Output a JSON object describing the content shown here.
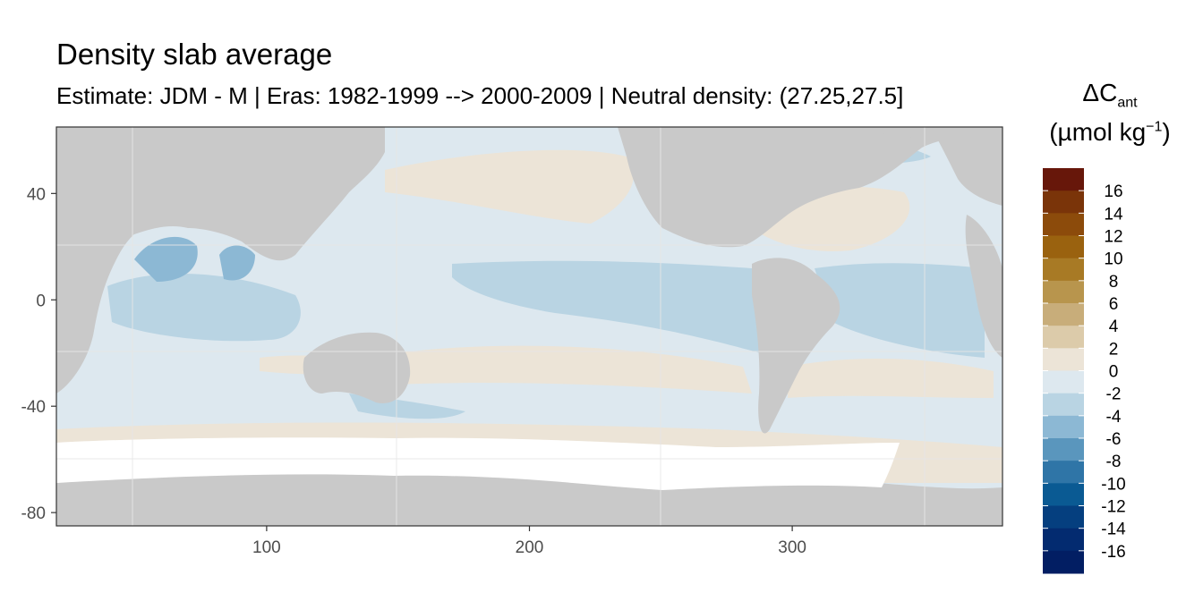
{
  "chart_data": {
    "type": "heatmap",
    "title": "Density slab average",
    "subtitle": "Estimate: JDM - M | Eras: 1982-1999 --> 2000-2009 | Neutral density: (27.25,27.5]",
    "x_ticks": [
      100,
      200,
      300
    ],
    "y_ticks": [
      40,
      0,
      -40,
      -80
    ],
    "xlim": [
      20,
      380
    ],
    "ylim": [
      -85,
      65
    ],
    "legend": {
      "title_symbol": "ΔC",
      "title_subscript": "ant",
      "unit_main": "(µmol kg",
      "unit_superscript": "−1",
      "unit_close": ")",
      "labels": [
        "16",
        "14",
        "12",
        "10",
        "8",
        "6",
        "4",
        "2",
        "0",
        "-2",
        "-4",
        "-6",
        "-8",
        "-10",
        "-12",
        "-14",
        "-16"
      ],
      "colors": [
        "#67170a",
        "#7a3409",
        "#8c4b0b",
        "#9a620f",
        "#a87a25",
        "#b8954d",
        "#c8ad7a",
        "#dccbaa",
        "#ece4d7",
        "#dde8ef",
        "#b9d4e3",
        "#8cb8d4",
        "#5a96bd",
        "#2f75a7",
        "#0a5a93",
        "#053f7f",
        "#032b70",
        "#021e63"
      ]
    },
    "colors": {
      "land": "#c9c9c9",
      "no_data": "#ffffff",
      "gridline": "#e6e6e6",
      "panel_border": "#333333"
    }
  }
}
